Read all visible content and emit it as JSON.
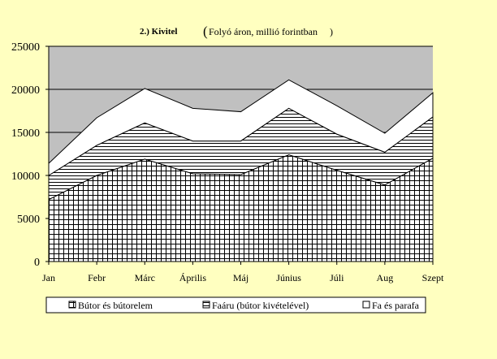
{
  "chart_data": {
    "type": "area",
    "stacked": true,
    "title": "2.) Kivitel",
    "subtitle": "Folyó áron, millió forintban",
    "categories": [
      "Jan",
      "Febr",
      "Márc",
      "Április",
      "Máj",
      "Június",
      "Júli",
      "Aug",
      "Szept"
    ],
    "ylim": [
      0,
      25000
    ],
    "yticks": [
      0,
      5000,
      10000,
      15000,
      20000,
      25000
    ],
    "xlabel": "",
    "ylabel": "",
    "grid": true,
    "legend_position": "bottom",
    "series": [
      {
        "name": "Bútor és bútorelem",
        "pattern": "grid",
        "values": [
          7200,
          10000,
          11900,
          10200,
          10100,
          12400,
          10600,
          8900,
          12000
        ]
      },
      {
        "name": "Faáru (bútor kivételével)",
        "pattern": "horizontal-lines",
        "values": [
          2800,
          3500,
          4200,
          3800,
          3900,
          5400,
          4200,
          3800,
          4800
        ]
      },
      {
        "name": "Fa és parafa",
        "pattern": "solid-white",
        "values": [
          1400,
          3200,
          4000,
          3800,
          3400,
          3300,
          3300,
          2200,
          2800
        ]
      }
    ],
    "colors": {
      "background": "#ffffc0",
      "plot_background": "#c0c0c0",
      "series_fill": "#ffffff",
      "line": "#000000"
    }
  }
}
